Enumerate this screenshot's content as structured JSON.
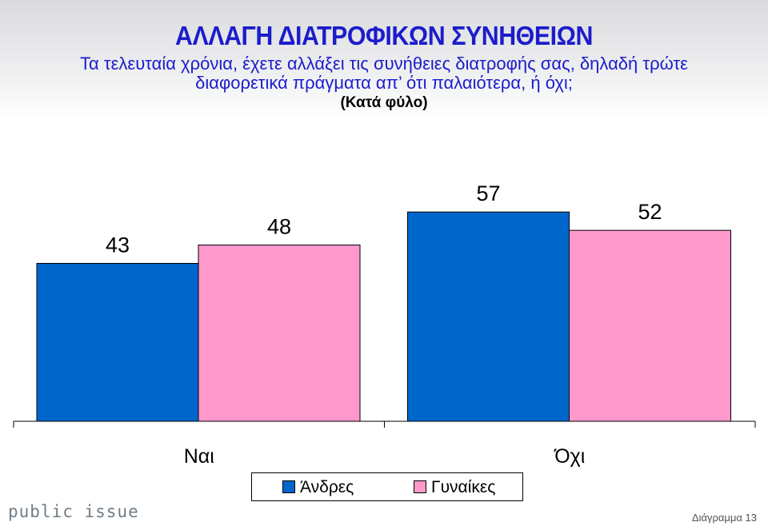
{
  "header": {
    "title": "ΑΛΛΑΓΗ ΔΙΑΤΡΟΦΙΚΩΝ ΣΥΝΗΘΕΙΩΝ",
    "question_line1": "Τα τελευταία χρόνια, έχετε αλλάξει τις συνήθειες διατροφής σας, δηλαδή τρώτε",
    "question_line2": "διαφορετικά πράγματα απ’ ότι παλαιότερα, ή όχι;",
    "note": "(Κατά φύλο)"
  },
  "chart_data": {
    "type": "bar",
    "title": "ΑΛΛΑΓΗ ΔΙΑΤΡΟΦΙΚΩΝ ΣΥΝΗΘΕΙΩΝ",
    "categories": [
      "Ναι",
      "Όχι"
    ],
    "series": [
      {
        "name": "Άνδρες",
        "values": [
          43,
          57
        ],
        "color": "#0066cc"
      },
      {
        "name": "Γυναίκες",
        "values": [
          48,
          52
        ],
        "color": "#ff99cc"
      }
    ],
    "ylim": [
      0,
      76
    ],
    "grid": false,
    "legend_position": "bottom",
    "data_labels": true
  },
  "footer": {
    "brand": "public issue",
    "slide_label": "Διάγραμμα 13"
  }
}
